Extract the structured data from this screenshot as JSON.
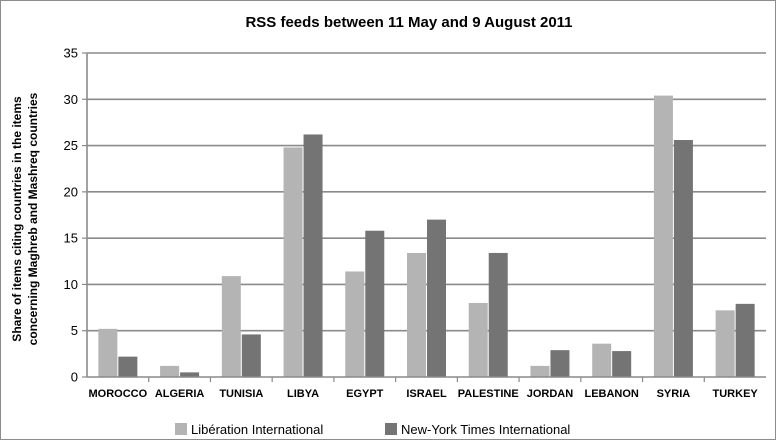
{
  "chart_data": {
    "type": "bar",
    "title": "RSS feeds between 11 May and 9 August 2011",
    "ylabel_lines": [
      "Share of items citing countries in the items",
      "concerning Maghreb and Mashreq countries"
    ],
    "xlabel": "",
    "ylim": [
      0,
      35
    ],
    "yticks": [
      0,
      5,
      10,
      15,
      20,
      25,
      30,
      35
    ],
    "grid": true,
    "legend_position": "bottom",
    "categories": [
      "MOROCCO",
      "ALGERIA",
      "TUNISIA",
      "LIBYA",
      "EGYPT",
      "ISRAEL",
      "PALESTINE",
      "JORDAN",
      "LEBANON",
      "SYRIA",
      "TURKEY"
    ],
    "series": [
      {
        "name": "Libération International",
        "color": "#b4b4b4",
        "values": [
          5.2,
          1.2,
          10.9,
          24.8,
          11.4,
          13.4,
          8.0,
          1.2,
          3.6,
          30.4,
          7.2
        ]
      },
      {
        "name": "New-York Times International",
        "color": "#747474",
        "values": [
          2.2,
          0.5,
          4.6,
          26.2,
          15.8,
          17.0,
          13.4,
          2.9,
          2.8,
          25.6,
          7.9
        ]
      }
    ]
  }
}
